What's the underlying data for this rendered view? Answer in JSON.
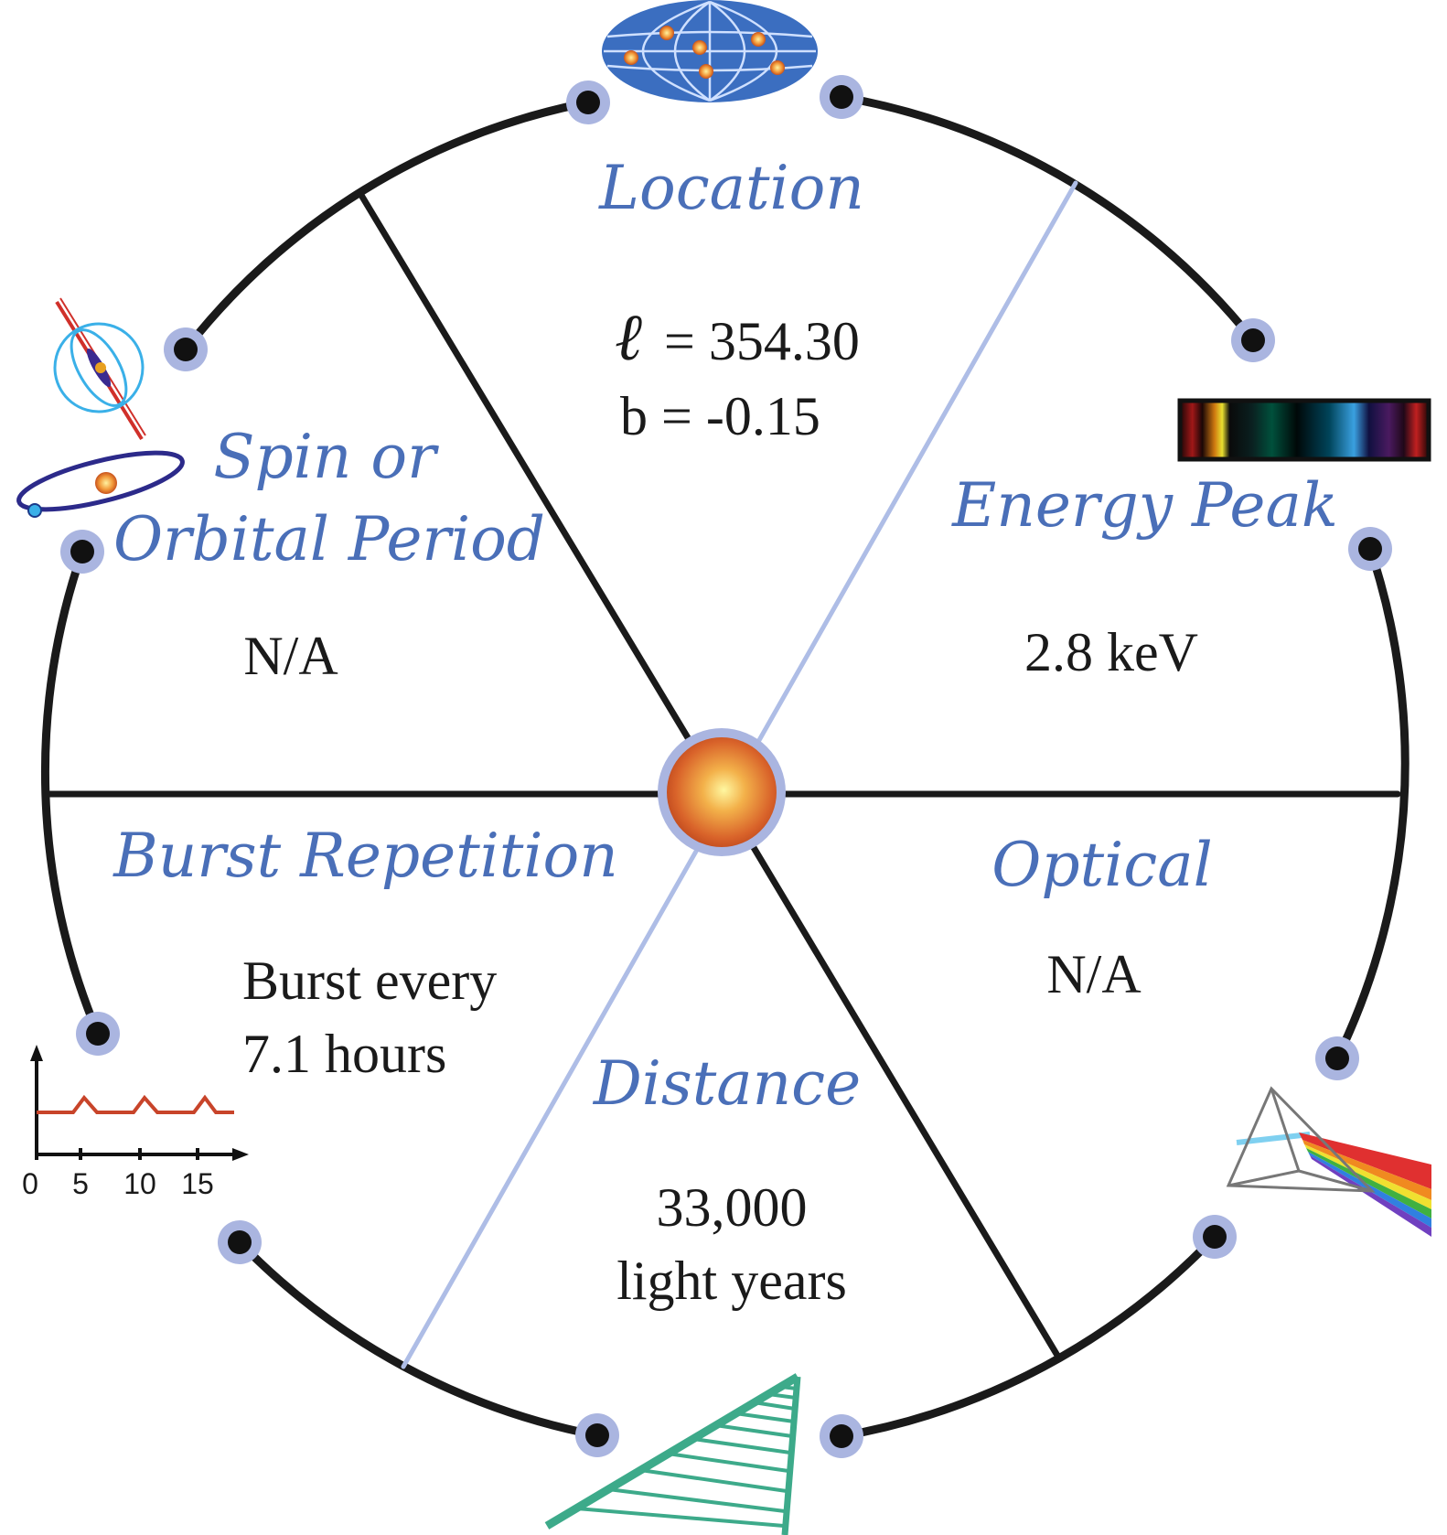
{
  "segments": {
    "location": {
      "title": "Location",
      "l_symbol": "ℓ",
      "l_value": "= 354.30",
      "b_value": "b = -0.15",
      "icon": "sky-map-icon"
    },
    "energy_peak": {
      "title": "Energy Peak",
      "value": "2.8 keV",
      "icon": "spectrum-icon"
    },
    "optical": {
      "title": "Optical",
      "value": "N/A",
      "icon": "prism-icon"
    },
    "distance": {
      "title": "Distance",
      "value_line1": "33,000",
      "value_line2": "light years",
      "icon": "ladder-icon"
    },
    "burst_repetition": {
      "title": "Burst Repetition",
      "value_line1": "Burst every",
      "value_line2": "7.1 hours",
      "icon": "burst-plot-icon",
      "plot_ticks": [
        "0",
        "5",
        "10",
        "15"
      ]
    },
    "spin_orbital": {
      "title_line1": "Spin or",
      "title_line2": "Orbital Period",
      "value": "N/A",
      "icon": "pulsar-orbit-icon"
    }
  },
  "colors": {
    "title_blue": "#4a6fb8",
    "node_halo": "#aab5e0",
    "light_line": "#aebde6",
    "ring": "#1a1a1a",
    "ladder": "#3daa8a"
  }
}
